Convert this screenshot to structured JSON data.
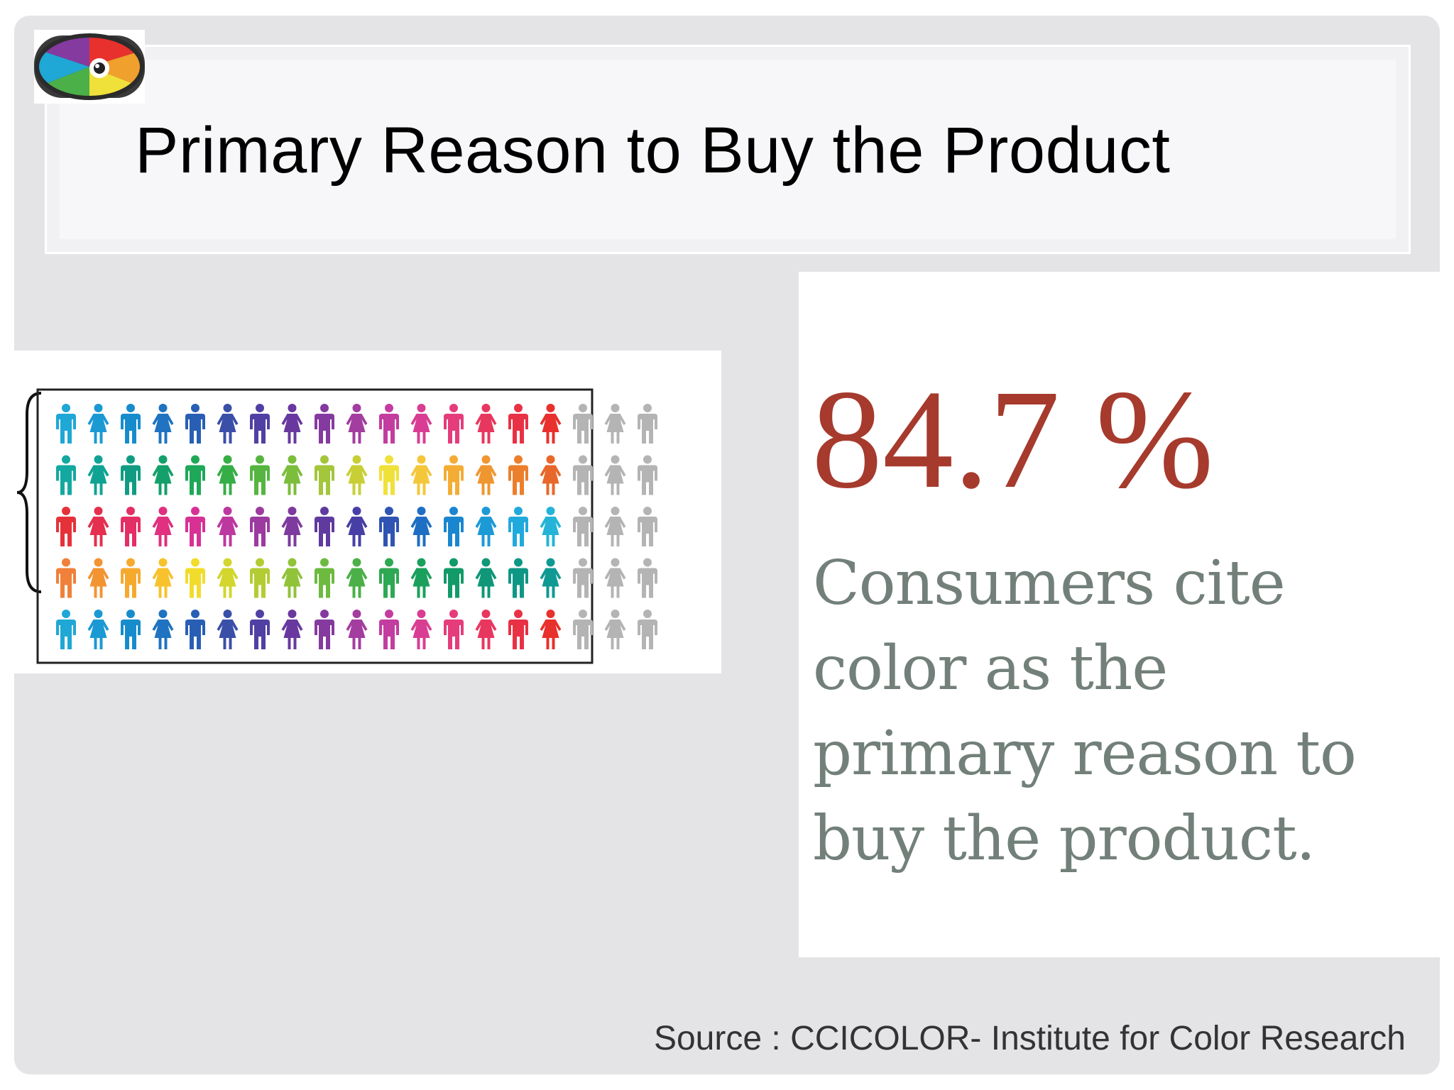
{
  "slide": {
    "title": "Primary Reason to Buy the Product",
    "logo_icon": "color-wheel-eye-icon"
  },
  "stat": {
    "value": "84.7 %",
    "description": "Consumers cite color as the primary reason to buy the product.",
    "value_color": "#a63a2d",
    "text_color": "#728079"
  },
  "infographic": {
    "icon": "person-icon",
    "rows": 5,
    "columns": 19,
    "highlighted_columns": 16,
    "bracket_icon": "curly-brace-icon",
    "inactive_color": "#b4b4b4",
    "row_colors": [
      [
        "#1fa7d6",
        "#1b99d3",
        "#178ccc",
        "#1f73c0",
        "#285fb5",
        "#3a4fa8",
        "#5140a3",
        "#69389f",
        "#853a9f",
        "#a33d9f",
        "#c33c9f",
        "#d93d93",
        "#e53c7c",
        "#e8375f",
        "#e93145",
        "#e8302c"
      ],
      [
        "#13a9a0",
        "#10a394",
        "#109c83",
        "#13a06a",
        "#1ea858",
        "#35ae45",
        "#55b540",
        "#7cbd3c",
        "#a3c63b",
        "#c8cf36",
        "#f0e13a",
        "#f4c73a",
        "#f3ad35",
        "#ef9630",
        "#eb7f2c",
        "#e8672a"
      ],
      [
        "#e5323a",
        "#e42f4e",
        "#e32f66",
        "#e0307f",
        "#d83196",
        "#bd37a0",
        "#9d3aa0",
        "#7e3a9e",
        "#5f3ba0",
        "#473fa6",
        "#2f54b3",
        "#1e6ec3",
        "#1a86d0",
        "#1c9ad6",
        "#20a9dc",
        "#25b4d8"
      ],
      [
        "#f0803a",
        "#f39433",
        "#f5aa2e",
        "#f7c22c",
        "#f2dc2b",
        "#d2d62d",
        "#b3cc33",
        "#90c33a",
        "#6dba40",
        "#4cb048",
        "#2ea853",
        "#1aa05b",
        "#129a68",
        "#0f9778",
        "#0f9786",
        "#109993"
      ],
      [
        "#1fa7d6",
        "#1b99d3",
        "#178ccc",
        "#1f73c0",
        "#285fb5",
        "#3a4fa8",
        "#5140a3",
        "#69389f",
        "#853a9f",
        "#a33d9f",
        "#c33c9f",
        "#d93d93",
        "#e53c7c",
        "#e8375f",
        "#e93145",
        "#e8302c"
      ]
    ]
  },
  "footer": {
    "source": "Source : CCICOLOR- Institute for Color Research"
  }
}
